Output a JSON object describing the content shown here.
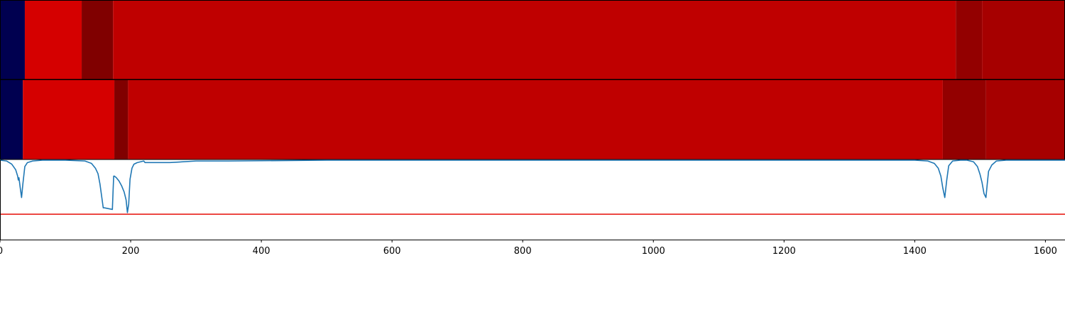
{
  "chart_data": [
    {
      "type": "heatmap",
      "title": "",
      "x_range": [
        0,
        1630
      ],
      "segments": [
        {
          "start": 0,
          "end": 38,
          "color": "#000050"
        },
        {
          "start": 38,
          "end": 125,
          "color": "#d50000"
        },
        {
          "start": 125,
          "end": 173,
          "color": "#800000"
        },
        {
          "start": 173,
          "end": 1463,
          "color": "#bf0000"
        },
        {
          "start": 1463,
          "end": 1503,
          "color": "#930000"
        },
        {
          "start": 1503,
          "end": 1630,
          "color": "#a60000"
        }
      ]
    },
    {
      "type": "heatmap",
      "title": "",
      "x_range": [
        0,
        1630
      ],
      "segments": [
        {
          "start": 0,
          "end": 35,
          "color": "#000050"
        },
        {
          "start": 35,
          "end": 175,
          "color": "#d50000"
        },
        {
          "start": 175,
          "end": 196,
          "color": "#800000"
        },
        {
          "start": 196,
          "end": 1443,
          "color": "#bf0000"
        },
        {
          "start": 1443,
          "end": 1509,
          "color": "#930000"
        },
        {
          "start": 1509,
          "end": 1630,
          "color": "#a60000"
        }
      ]
    },
    {
      "type": "line",
      "title": "",
      "xlabel": "",
      "ylabel": "",
      "xlim": [
        0,
        1630
      ],
      "ylim": [
        -1.0,
        0.0
      ],
      "xticks": [
        "0",
        "200",
        "400",
        "600",
        "800",
        "1000",
        "1200",
        "1400",
        "1600"
      ],
      "xtick_values": [
        0,
        200,
        400,
        600,
        800,
        1000,
        1200,
        1400,
        1600
      ],
      "grid": false,
      "threshold": {
        "value": -0.68,
        "color": "#e8221b"
      },
      "series": [
        {
          "color": "#1f77b4",
          "x": [
            0,
            10,
            18,
            24,
            27,
            28,
            29,
            31,
            33,
            35,
            38,
            42,
            50,
            65,
            100,
            130,
            140,
            146,
            150,
            153,
            155,
            158,
            160,
            172,
            173,
            174,
            175,
            178,
            182,
            186,
            190,
            193,
            195,
            197,
            199,
            202,
            205,
            210,
            215,
            220,
            222,
            230,
            260,
            300,
            350,
            500,
            800,
            1100,
            1300,
            1400,
            1420,
            1430,
            1436,
            1440,
            1443,
            1446,
            1449,
            1452,
            1458,
            1470,
            1480,
            1490,
            1496,
            1500,
            1503,
            1506,
            1509,
            1511,
            1513,
            1518,
            1525,
            1540,
            1600,
            1630
          ],
          "y": [
            0.0,
            -0.01,
            -0.05,
            -0.12,
            -0.2,
            -0.25,
            -0.22,
            -0.35,
            -0.47,
            -0.3,
            -0.08,
            -0.03,
            -0.01,
            0.0,
            0.0,
            -0.01,
            -0.04,
            -0.1,
            -0.17,
            -0.3,
            -0.42,
            -0.6,
            -0.6,
            -0.62,
            -0.4,
            -0.2,
            -0.2,
            -0.22,
            -0.26,
            -0.32,
            -0.4,
            -0.5,
            -0.66,
            -0.55,
            -0.24,
            -0.1,
            -0.05,
            -0.03,
            -0.02,
            -0.01,
            -0.03,
            -0.03,
            -0.03,
            -0.01,
            -0.01,
            0.0,
            0.0,
            0.0,
            0.0,
            0.0,
            -0.01,
            -0.04,
            -0.1,
            -0.2,
            -0.35,
            -0.47,
            -0.25,
            -0.07,
            -0.01,
            0.0,
            0.0,
            -0.02,
            -0.08,
            -0.18,
            -0.28,
            -0.42,
            -0.47,
            -0.3,
            -0.14,
            -0.06,
            -0.01,
            0.0,
            0.0,
            0.0
          ]
        }
      ]
    }
  ]
}
